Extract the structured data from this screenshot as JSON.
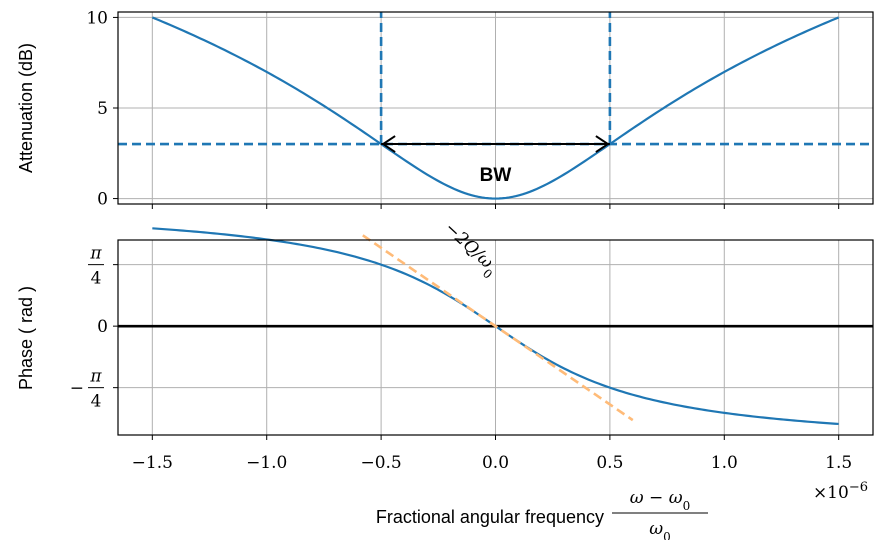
{
  "chart_data": [
    {
      "type": "line",
      "panel": "top",
      "ylabel": "Attenuation (dB)",
      "xlim": [
        -1.65,
        1.65
      ],
      "ylim": [
        10.3,
        -0.3
      ],
      "y_inverted": true,
      "grid": true,
      "yticks": [
        {
          "v": 0,
          "label": "0"
        },
        {
          "v": 5,
          "label": "5"
        },
        {
          "v": 10,
          "label": "10"
        }
      ],
      "series": [
        {
          "color": "#1f77b4",
          "style": "solid",
          "x": [
            -1.5,
            -1.0,
            -0.5,
            0.0,
            0.5,
            1.0,
            1.5
          ],
          "y": [
            10.0,
            6.99,
            3.01,
            0.0,
            3.01,
            6.99,
            10.0
          ]
        },
        {
          "color": "#1f77b4",
          "style": "dashed",
          "x": [
            -1.65,
            1.65
          ],
          "y": [
            3.01,
            3.01
          ]
        },
        {
          "color": "#1f77b4",
          "style": "dashed",
          "x": [
            -0.5,
            -0.5
          ],
          "y": [
            3.01,
            10.3
          ]
        },
        {
          "color": "#1f77b4",
          "style": "dashed",
          "x": [
            0.5,
            0.5
          ],
          "y": [
            3.01,
            10.3
          ]
        }
      ],
      "annotation": {
        "text": "BW",
        "x_from": -0.5,
        "x_to": 0.5,
        "y": 3.01
      }
    },
    {
      "type": "line",
      "panel": "bottom",
      "ylabel": "Phase ( rad )",
      "xlim": [
        -1.65,
        1.65
      ],
      "ylim": [
        -1.39,
        1.1
      ],
      "grid": true,
      "yticks": [
        {
          "v": 0.7854,
          "num": "π",
          "den": "4",
          "sign": ""
        },
        {
          "v": 0,
          "label": "0"
        },
        {
          "v": -0.7854,
          "num": "π",
          "den": "4",
          "sign": "−"
        }
      ],
      "xticks": [
        {
          "v": -1.5,
          "label": "−1.5"
        },
        {
          "v": -1.0,
          "label": "−1.0"
        },
        {
          "v": -0.5,
          "label": "−0.5"
        },
        {
          "v": 0.0,
          "label": "0.0"
        },
        {
          "v": 0.5,
          "label": "0.5"
        },
        {
          "v": 1.0,
          "label": "1.0"
        },
        {
          "v": 1.5,
          "label": "1.5"
        }
      ],
      "xlabel": "Fractional angular frequency",
      "xlabel_math": {
        "num": "ω − ω",
        "num_sub": "0",
        "den": "ω",
        "den_sub": "0"
      },
      "x_multiplier": {
        "base": "×10",
        "exp": "−6"
      },
      "series": [
        {
          "color": "#1f77b4",
          "style": "solid",
          "x": [
            -1.5,
            -1.0,
            -0.5,
            -0.25,
            0.0,
            0.25,
            0.5,
            1.0,
            1.5
          ],
          "y": [
            1.249,
            1.107,
            0.785,
            0.464,
            0.0,
            -0.464,
            -0.785,
            -1.107,
            -1.249
          ]
        },
        {
          "color": "#000000",
          "style": "solid",
          "x": [
            -1.65,
            1.65
          ],
          "y": [
            0,
            0
          ]
        },
        {
          "color": "#ffbb78",
          "style": "dashed",
          "x": [
            -0.58,
            0.6
          ],
          "y": [
            1.16,
            -1.2
          ]
        }
      ],
      "slope_label": {
        "text": "−2Q/ω",
        "sub": "0"
      }
    }
  ]
}
